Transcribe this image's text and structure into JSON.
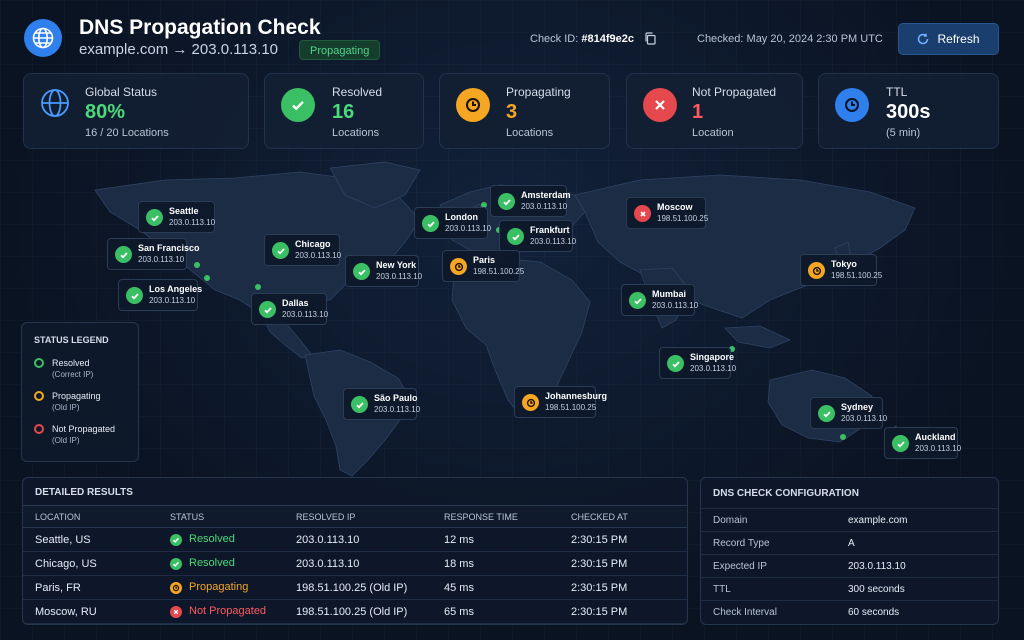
{
  "header": {
    "title": "DNS Propagation Check",
    "subtitle": "example.com → 203.0.113.10",
    "status_badge": "Propagating",
    "check_id_label": "Check ID:",
    "check_id": "#814f9e2c",
    "checked": "Checked: May 20, 2024 2:30 PM UTC",
    "refresh_label": "Refresh"
  },
  "stats": {
    "global": {
      "label": "Global Status",
      "value": "80%",
      "sub": "16 / 20 Locations"
    },
    "resolved": {
      "label": "Resolved",
      "value": "16",
      "sub": "Locations"
    },
    "propagating": {
      "label": "Propagating",
      "value": "3",
      "sub": "Locations"
    },
    "not_propagated": {
      "label": "Not Propagated",
      "value": "1",
      "sub": "Location"
    },
    "ttl": {
      "label": "TTL",
      "value": "300s",
      "sub": "(5 min)"
    }
  },
  "map_pins": [
    {
      "city": "Seattle",
      "ip": "203.0.113.10",
      "status": "resolved"
    },
    {
      "city": "San Francisco",
      "ip": "203.0.113.10",
      "status": "resolved"
    },
    {
      "city": "Los Angeles",
      "ip": "203.0.113.10",
      "status": "resolved"
    },
    {
      "city": "Chicago",
      "ip": "203.0.113.10",
      "status": "resolved"
    },
    {
      "city": "Dallas",
      "ip": "203.0.113.10",
      "status": "resolved"
    },
    {
      "city": "New York",
      "ip": "203.0.113.10",
      "status": "resolved"
    },
    {
      "city": "London",
      "ip": "203.0.113.10",
      "status": "resolved"
    },
    {
      "city": "Amsterdam",
      "ip": "203.0.113.10",
      "status": "resolved"
    },
    {
      "city": "Frankfurt",
      "ip": "203.0.113.10",
      "status": "resolved"
    },
    {
      "city": "Paris",
      "ip": "198.51.100.25",
      "status": "propagating"
    },
    {
      "city": "Moscow",
      "ip": "198.51.100.25",
      "status": "not_propagated"
    },
    {
      "city": "Mumbai",
      "ip": "203.0.113.10",
      "status": "resolved"
    },
    {
      "city": "Tokyo",
      "ip": "198.51.100.25",
      "status": "propagating"
    },
    {
      "city": "Singapore",
      "ip": "203.0.113.10",
      "status": "resolved"
    },
    {
      "city": "São Paulo",
      "ip": "203.0.113.10",
      "status": "resolved"
    },
    {
      "city": "Johannesburg",
      "ip": "198.51.100.25",
      "status": "propagating"
    },
    {
      "city": "Sydney",
      "ip": "203.0.113.10",
      "status": "resolved"
    },
    {
      "city": "Auckland",
      "ip": "203.0.113.10",
      "status": "resolved"
    }
  ],
  "legend": {
    "title": "STATUS LEGEND",
    "items": [
      {
        "label": "Resolved",
        "sub": "(Correct IP)",
        "color": "#3bbf64"
      },
      {
        "label": "Propagating",
        "sub": "(Old IP)",
        "color": "#f5a623"
      },
      {
        "label": "Not Propagated",
        "sub": "(Old IP)",
        "color": "#e5484d"
      }
    ]
  },
  "results": {
    "title": "DETAILED RESULTS",
    "columns": [
      "LOCATION",
      "STATUS",
      "RESOLVED IP",
      "RESPONSE TIME",
      "CHECKED AT"
    ],
    "rows": [
      {
        "location": "Seattle, US",
        "status": "Resolved",
        "status_key": "resolved",
        "ip": "203.0.113.10",
        "time": "12 ms",
        "checked": "2:30:15 PM"
      },
      {
        "location": "Chicago, US",
        "status": "Resolved",
        "status_key": "resolved",
        "ip": "203.0.113.10",
        "time": "18 ms",
        "checked": "2:30:15 PM"
      },
      {
        "location": "Paris, FR",
        "status": "Propagating",
        "status_key": "propagating",
        "ip": "198.51.100.25 (Old IP)",
        "time": "45 ms",
        "checked": "2:30:15 PM"
      },
      {
        "location": "Moscow, RU",
        "status": "Not Propagated",
        "status_key": "not_propagated",
        "ip": "198.51.100.25 (Old IP)",
        "time": "65 ms",
        "checked": "2:30:15 PM"
      }
    ]
  },
  "config": {
    "title": "DNS CHECK CONFIGURATION",
    "rows": [
      {
        "key": "Domain",
        "value": "example.com"
      },
      {
        "key": "Record Type",
        "value": "A"
      },
      {
        "key": "Expected IP",
        "value": "203.0.113.10"
      },
      {
        "key": "TTL",
        "value": "300 seconds"
      },
      {
        "key": "Check Interval",
        "value": "60 seconds"
      }
    ]
  },
  "colors": {
    "resolved": "#3bbf64",
    "propagating": "#f5a623",
    "not_propagated": "#e5484d",
    "accent": "#2f80ed"
  }
}
